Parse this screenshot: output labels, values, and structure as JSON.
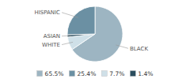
{
  "chart_data": {
    "type": "pie",
    "categories": [
      "BLACK",
      "WHITE",
      "ASIAN",
      "HISPANIC"
    ],
    "values": [
      65.5,
      7.7,
      1.4,
      25.4
    ],
    "value_labels": [
      "65.5%",
      "7.7%",
      "1.4%",
      "25.4%"
    ],
    "colors": [
      "#9db5c2",
      "#cfe0e8",
      "#2a4d5e",
      "#6b90a3"
    ],
    "legend": "bottom"
  }
}
